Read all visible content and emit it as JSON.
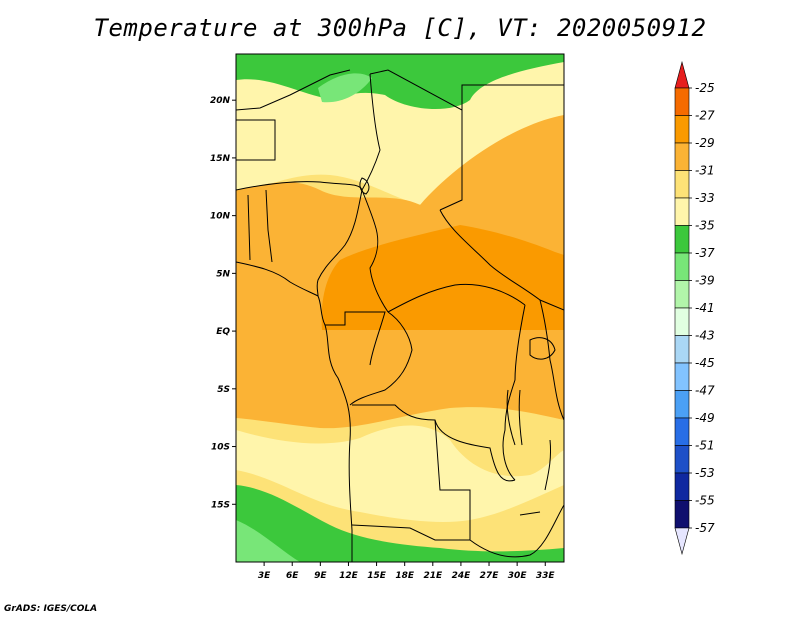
{
  "title": "Temperature at 300hPa [C], VT: 2020050912",
  "credit": "GrADS: IGES/COLA",
  "map": {
    "lon_range": [
      0,
      35
    ],
    "lat_range": [
      -20,
      24
    ],
    "x_ticks": [
      "3E",
      "6E",
      "9E",
      "12E",
      "15E",
      "18E",
      "21E",
      "24E",
      "27E",
      "30E",
      "33E"
    ],
    "x_tick_values": [
      3,
      6,
      9,
      12,
      15,
      18,
      21,
      24,
      27,
      30,
      33
    ],
    "y_ticks": [
      "20N",
      "15N",
      "10N",
      "5N",
      "EQ",
      "5S",
      "10S",
      "15S"
    ],
    "y_tick_values": [
      20,
      15,
      10,
      5,
      0,
      -5,
      -10,
      -15
    ]
  },
  "legend": {
    "labels": [
      "-25",
      "-27",
      "-29",
      "-31",
      "-33",
      "-35",
      "-37",
      "-39",
      "-41",
      "-43",
      "-45",
      "-47",
      "-49",
      "-51",
      "-53",
      "-55",
      "-57"
    ],
    "colors": [
      "#e63a00",
      "#f56b00",
      "#fa9a00",
      "#fbb335",
      "#fde277",
      "#fff5ab",
      "#3cc83c",
      "#78e678",
      "#b2f5aa",
      "#e1ffe1",
      "#aad7f5",
      "#82c3ff",
      "#4ba0f5",
      "#286ee6",
      "#1e50c8",
      "#0f28a0",
      "#0f0f6e"
    ],
    "top_color": "#e61e1e",
    "bottom_color": "#e6e6ff"
  }
}
